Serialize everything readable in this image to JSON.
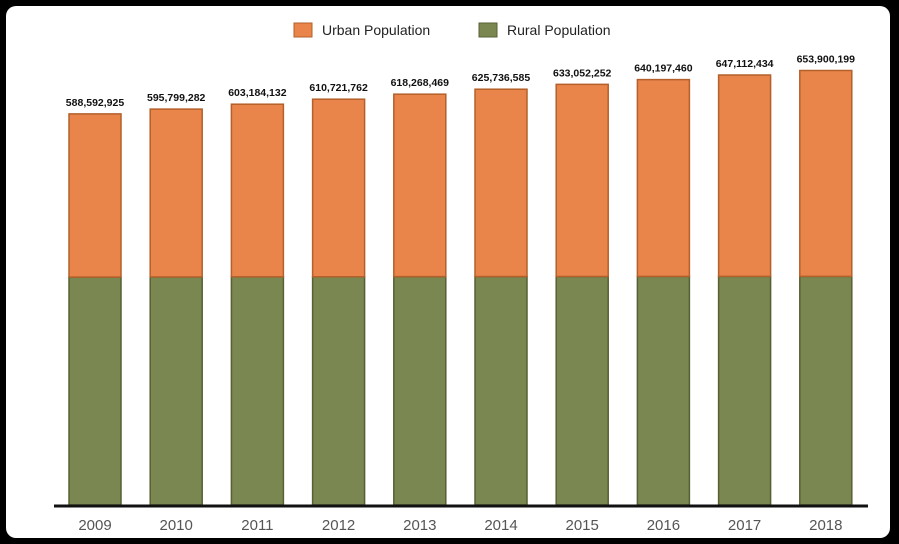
{
  "chart_data": {
    "type": "bar",
    "stacked": true,
    "categories": [
      "2009",
      "2010",
      "2011",
      "2012",
      "2013",
      "2014",
      "2015",
      "2016",
      "2017",
      "2018"
    ],
    "series": [
      {
        "name": "Rural Population",
        "color": "#7a8750",
        "values": [
          343000000,
          343200000,
          343400000,
          343500000,
          343700000,
          343800000,
          343900000,
          344000000,
          344100000,
          344100000
        ]
      },
      {
        "name": "Urban Population",
        "color": "#e9844b",
        "values": [
          245592925,
          252599282,
          259784132,
          267221762,
          274568469,
          281936585,
          289152252,
          296197460,
          303012434,
          309800199
        ]
      }
    ],
    "totals": [
      "588,592,925",
      "595,799,282",
      "603,184,132",
      "610,721,762",
      "618,268,469",
      "625,736,585",
      "633,052,252",
      "640,197,460",
      "647,112,434",
      "653,900,199"
    ],
    "legend": [
      "Urban Population",
      "Rural Population"
    ],
    "legend_position": "top-center",
    "title": "",
    "xlabel": "",
    "ylabel": "",
    "ylim": [
      0,
      760000000
    ],
    "grid": false,
    "colors": {
      "urban": "#e9844b",
      "rural": "#7a8750",
      "border": "#b4602a",
      "rural_border": "#566033",
      "background": "#ffffff",
      "frame": "#000000",
      "axis": "#111111"
    }
  }
}
